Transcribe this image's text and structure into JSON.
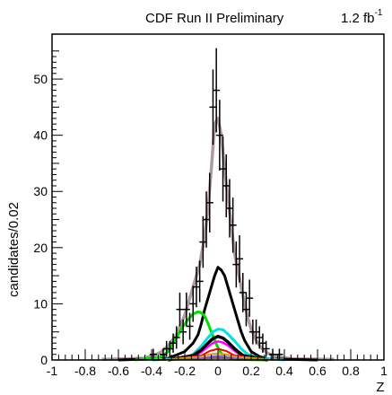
{
  "header": {
    "experiment": "CDF Run II Preliminary",
    "luminosity_value": "1.2 fb",
    "luminosity_exponent": "-1"
  },
  "chart_data": {
    "type": "line",
    "title": "CDF Run II Preliminary",
    "xlabel": "Z",
    "ylabel": "candidates/0.02",
    "xlim": [
      -1,
      1
    ],
    "ylim": [
      0,
      58
    ],
    "grid": false,
    "legend": "none",
    "x_ticks": [
      -1,
      -0.8,
      -0.6,
      -0.4,
      -0.2,
      0,
      0.2,
      0.4,
      0.6,
      0.8,
      1
    ],
    "x_tick_labels": [
      "-1",
      "-0.8",
      "-0.6",
      "-0.4",
      "-0.2",
      "0",
      "0.2",
      "0.4",
      "0.6",
      "0.8",
      "1"
    ],
    "y_ticks": [
      0,
      10,
      20,
      30,
      40,
      50
    ],
    "y_tick_labels": [
      "0",
      "10",
      "20",
      "30",
      "40",
      "50"
    ],
    "data_points": {
      "color": "#000000",
      "x": [
        -0.45,
        -0.39,
        -0.37,
        -0.33,
        -0.31,
        -0.29,
        -0.27,
        -0.25,
        -0.23,
        -0.21,
        -0.19,
        -0.17,
        -0.15,
        -0.13,
        -0.11,
        -0.09,
        -0.07,
        -0.05,
        -0.03,
        -0.01,
        0.01,
        0.03,
        0.05,
        0.07,
        0.09,
        0.11,
        0.13,
        0.15,
        0.17,
        0.19,
        0.21,
        0.23,
        0.25,
        0.27,
        0.29,
        0.33,
        0.37,
        0.41
      ],
      "y": [
        0,
        1,
        0,
        1,
        2,
        2,
        3,
        4,
        9,
        5,
        9,
        6,
        10,
        13,
        14,
        21,
        25,
        28,
        45,
        48,
        40,
        34,
        31,
        27,
        24,
        17,
        18,
        12,
        9,
        11,
        5,
        5,
        4,
        3,
        2,
        1,
        1,
        0
      ],
      "err": [
        0,
        1,
        0,
        1,
        1.4,
        1.4,
        1.7,
        2,
        3,
        2.2,
        3,
        2.4,
        3.2,
        3.6,
        3.7,
        4.6,
        5,
        5.3,
        6.7,
        7.5,
        6.3,
        5.8,
        5.6,
        5.2,
        4.9,
        4.1,
        4.2,
        3.5,
        3,
        3.3,
        2.2,
        2.2,
        2,
        1.7,
        1.4,
        1,
        1,
        0
      ]
    },
    "series": [
      {
        "color": "#b09aa0",
        "width": 3.5,
        "x": [
          -0.7,
          -0.45,
          -0.4,
          -0.35,
          -0.3,
          -0.25,
          -0.2,
          -0.17,
          -0.14,
          -0.11,
          -0.08,
          -0.06,
          -0.04,
          -0.02,
          0,
          0.02,
          0.04,
          0.06,
          0.08,
          0.1,
          0.12,
          0.14,
          0.16,
          0.18,
          0.2,
          0.23,
          0.26,
          0.3,
          0.35,
          0.45,
          0.7
        ],
        "y": [
          0.1,
          0.3,
          0.7,
          1.3,
          2.5,
          4.5,
          8,
          11,
          14,
          17,
          22,
          27,
          34,
          42,
          43,
          40,
          34,
          29,
          24,
          19,
          16,
          13,
          10,
          7.5,
          5.5,
          3.5,
          2.2,
          1.2,
          0.6,
          0.2,
          0.1
        ]
      },
      {
        "color": "#000000",
        "width": 3,
        "x": [
          -0.6,
          -0.3,
          -0.2,
          -0.15,
          -0.12,
          -0.1,
          -0.08,
          -0.06,
          -0.04,
          -0.02,
          0,
          0.02,
          0.04,
          0.06,
          0.08,
          0.1,
          0.12,
          0.14,
          0.16,
          0.18,
          0.2,
          0.25,
          0.3,
          0.6
        ],
        "y": [
          0,
          0.3,
          1.5,
          3,
          4.5,
          6.5,
          9,
          11,
          13,
          15,
          16.5,
          16,
          15,
          13,
          11,
          9,
          7,
          5,
          3.5,
          2.5,
          1.5,
          0.6,
          0.2,
          0
        ]
      },
      {
        "color": "#00dd00",
        "width": 3,
        "x": [
          -0.5,
          -0.35,
          -0.3,
          -0.27,
          -0.24,
          -0.21,
          -0.18,
          -0.15,
          -0.12,
          -0.1,
          -0.08,
          -0.06,
          -0.04,
          -0.02,
          0,
          0.02,
          0.05,
          0.1,
          0.3
        ],
        "y": [
          0,
          0.5,
          1.5,
          3,
          4.5,
          6,
          7.2,
          8.2,
          8.6,
          8.4,
          7.8,
          6.5,
          5,
          3.5,
          2.2,
          1.2,
          0.5,
          0.1,
          0
        ]
      },
      {
        "color": "#00e0e0",
        "width": 3,
        "x": [
          -0.4,
          -0.2,
          -0.15,
          -0.1,
          -0.06,
          -0.03,
          0,
          0.03,
          0.06,
          0.1,
          0.14,
          0.18,
          0.25,
          0.4
        ],
        "y": [
          0,
          0.3,
          1,
          2.5,
          4,
          5,
          5.5,
          5.4,
          4.6,
          3.4,
          2,
          1,
          0.3,
          0
        ]
      },
      {
        "color": "#ff00ff",
        "width": 2.5,
        "x": [
          -0.3,
          -0.15,
          -0.1,
          -0.06,
          -0.03,
          0,
          0.03,
          0.06,
          0.1,
          0.15,
          0.3
        ],
        "y": [
          0,
          0.5,
          1.4,
          2.4,
          3,
          3.3,
          3.1,
          2.6,
          1.6,
          0.6,
          0
        ]
      },
      {
        "color": "#000000",
        "width": 3.5,
        "x": [
          -0.3,
          -0.15,
          -0.1,
          -0.06,
          -0.03,
          0,
          0.03,
          0.06,
          0.1,
          0.15,
          0.3
        ],
        "y": [
          0,
          0.8,
          1.8,
          3,
          3.8,
          4.2,
          3.9,
          3.2,
          2,
          0.8,
          0
        ]
      },
      {
        "color": "#ff0000",
        "width": 2,
        "x": [
          -0.3,
          -0.1,
          -0.05,
          0,
          0.05,
          0.1,
          0.3
        ],
        "y": [
          0,
          0.8,
          1.6,
          2,
          1.6,
          0.8,
          0
        ]
      },
      {
        "color": "#e0a000",
        "width": 2,
        "x": [
          -0.35,
          -0.1,
          -0.05,
          0,
          0.05,
          0.1,
          0.35
        ],
        "y": [
          0,
          0.6,
          1,
          1.2,
          1,
          0.6,
          0
        ]
      },
      {
        "color": "#8080ff",
        "width": 2,
        "x": [
          -0.3,
          -0.1,
          -0.05,
          0,
          0.05,
          0.1,
          0.3
        ],
        "y": [
          0,
          0.3,
          0.6,
          0.8,
          0.6,
          0.3,
          0
        ]
      },
      {
        "color": "#9932cc",
        "width": 2,
        "x": [
          -0.3,
          -0.1,
          -0.05,
          0,
          0.05,
          0.1,
          0.3
        ],
        "y": [
          0,
          0.2,
          0.4,
          0.5,
          0.4,
          0.2,
          0
        ]
      },
      {
        "color": "#808000",
        "width": 1.5,
        "x": [
          -0.35,
          -0.1,
          0,
          0.1,
          0.35
        ],
        "y": [
          0,
          0.2,
          0.3,
          0.2,
          0
        ]
      }
    ]
  }
}
